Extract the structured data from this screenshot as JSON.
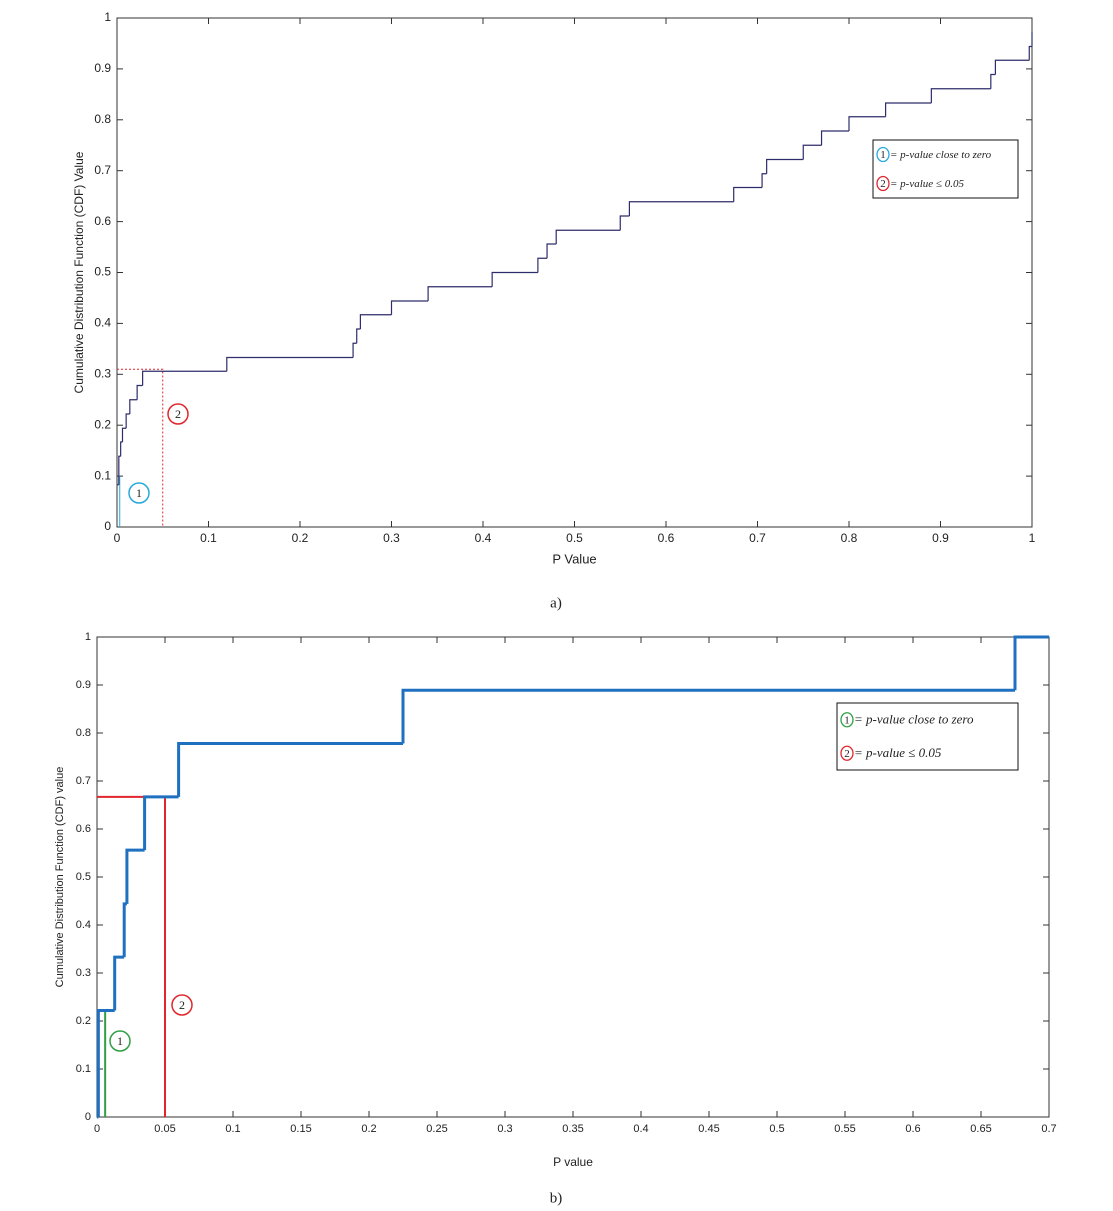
{
  "chart_data": [
    {
      "type": "step",
      "xlabel": "P Value",
      "ylabel": "Cumulative Distribution Function (CDF) Value",
      "caption": "a)",
      "xlim": [
        0,
        1
      ],
      "ylim": [
        0,
        1
      ],
      "xticks": [
        0,
        0.1,
        0.2,
        0.3,
        0.4,
        0.5,
        0.6,
        0.7,
        0.8,
        0.9,
        1
      ],
      "yticks": [
        0,
        0.1,
        0.2,
        0.3,
        0.4,
        0.5,
        0.6,
        0.7,
        0.8,
        0.9,
        1
      ],
      "series": [
        {
          "color": "#2e2d6b",
          "width": 1.2,
          "x": [
            0,
            0.002,
            0.004,
            0.006,
            0.01,
            0.014,
            0.022,
            0.028,
            0.12,
            0.258,
            0.262,
            0.266,
            0.3,
            0.34,
            0.41,
            0.46,
            0.47,
            0.48,
            0.55,
            0.56,
            0.674,
            0.705,
            0.71,
            0.75,
            0.77,
            0.8,
            0.84,
            0.89,
            0.955,
            0.96,
            0.997,
            1
          ],
          "values": [
            0.083,
            0.139,
            0.167,
            0.194,
            0.222,
            0.25,
            0.278,
            0.306,
            0.333,
            0.361,
            0.389,
            0.417,
            0.444,
            0.472,
            0.5,
            0.528,
            0.556,
            0.583,
            0.611,
            0.639,
            0.667,
            0.694,
            0.722,
            0.75,
            0.778,
            0.806,
            0.833,
            0.861,
            0.889,
            0.917,
            0.944,
            0.972
          ]
        }
      ],
      "reference_lines": [
        {
          "color": "#e0262c",
          "dashed": true,
          "x": [
            0,
            0.05,
            0.05
          ],
          "values": [
            0.31,
            0.31,
            0
          ]
        },
        {
          "color": "#27a9dc",
          "dashed": false,
          "x": [
            0.003,
            0.003
          ],
          "values": [
            0.1,
            0
          ]
        }
      ],
      "annotations": [
        {
          "text": "1",
          "color": "#27a9dc"
        },
        {
          "text": "2",
          "color": "#e0262c"
        }
      ],
      "legend": [
        {
          "marker": "1",
          "color": "#27a9dc",
          "label": "= p-value close to zero"
        },
        {
          "marker": "2",
          "color": "#e0262c",
          "label": "= p-value ≤ 0.05"
        }
      ]
    },
    {
      "type": "step",
      "xlabel": "P value",
      "ylabel": "Cumulative Distribution Function (CDF) value",
      "caption": "b)",
      "xlim": [
        0,
        0.7
      ],
      "ylim": [
        0,
        1
      ],
      "xticks": [
        0,
        0.05,
        0.1,
        0.15,
        0.2,
        0.25,
        0.3,
        0.35,
        0.4,
        0.45,
        0.5,
        0.55,
        0.6,
        0.65,
        0.7
      ],
      "yticks": [
        0,
        0.1,
        0.2,
        0.3,
        0.4,
        0.5,
        0.6,
        0.7,
        0.8,
        0.9,
        1
      ],
      "series": [
        {
          "color": "#1f70c1",
          "width": 3,
          "x": [
            0,
            0.001,
            0.013,
            0.02,
            0.022,
            0.035,
            0.06,
            0.225,
            0.675
          ],
          "values": [
            0,
            0.222,
            0.333,
            0.444,
            0.556,
            0.667,
            0.778,
            0.889,
            1
          ]
        }
      ],
      "reference_lines": [
        {
          "color": "#e0262c",
          "dashed": false,
          "x": [
            0,
            0.05,
            0.05
          ],
          "values": [
            0.667,
            0.667,
            0
          ]
        },
        {
          "color": "#2ea043",
          "dashed": false,
          "x": [
            0,
            0.006,
            0.006
          ],
          "values": [
            0.222,
            0.222,
            0
          ]
        }
      ],
      "annotations": [
        {
          "text": "1",
          "color": "#2ea043"
        },
        {
          "text": "2",
          "color": "#e0262c"
        }
      ],
      "legend": [
        {
          "marker": "1",
          "color": "#2ea043",
          "label": "= p-value close to zero"
        },
        {
          "marker": "2",
          "color": "#e0262c",
          "label": "= p-value ≤ 0.05"
        }
      ]
    }
  ]
}
